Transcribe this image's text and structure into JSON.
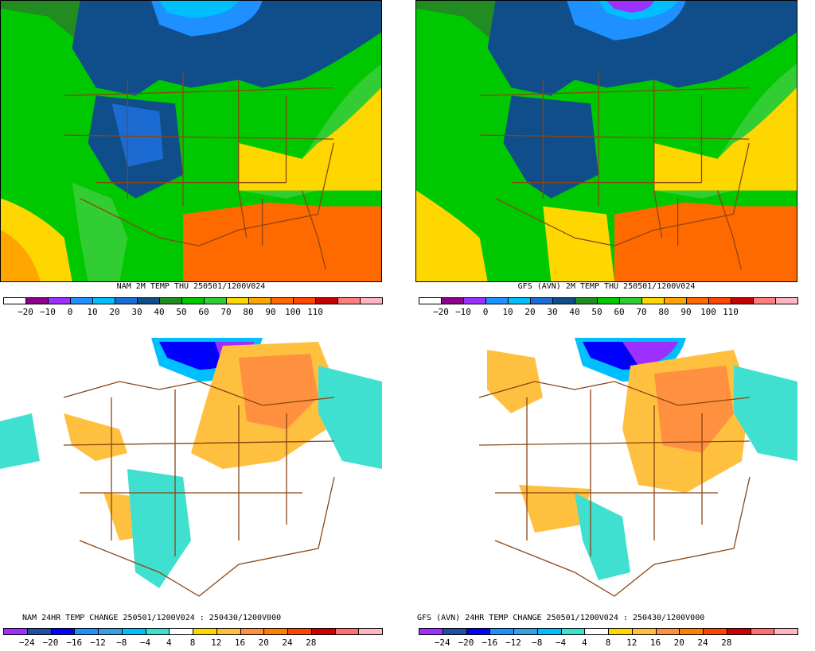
{
  "panels": [
    {
      "id": "nam-temp",
      "caption": "NAM 2M TEMP  THU 250501/1200V024",
      "colorbar": [
        "#ffffff",
        "#8b008b",
        "#9b30ff",
        "#1e90ff",
        "#00bfff",
        "#1c6bd2",
        "#104e8b",
        "#228b22",
        "#00c800",
        "#32cd32",
        "#ffd700",
        "#ffa500",
        "#ff6a00",
        "#ff4500",
        "#c80000",
        "#ff7f7f",
        "#ffb6c1"
      ],
      "ticks": [
        "−20",
        "−10",
        "0",
        "10",
        "20",
        "30",
        "40",
        "50",
        "60",
        "70",
        "80",
        "90",
        "100",
        "110"
      ]
    },
    {
      "id": "gfs-temp",
      "caption": "GFS (AVN) 2M TEMP  THU 250501/1200V024",
      "colorbar": [
        "#ffffff",
        "#8b008b",
        "#9b30ff",
        "#1e90ff",
        "#00bfff",
        "#1c6bd2",
        "#104e8b",
        "#228b22",
        "#00c800",
        "#32cd32",
        "#ffd700",
        "#ffa500",
        "#ff6a00",
        "#ff4500",
        "#c80000",
        "#ff7f7f",
        "#ffb6c1"
      ],
      "ticks": [
        "−20",
        "−10",
        "0",
        "10",
        "20",
        "30",
        "40",
        "50",
        "60",
        "70",
        "80",
        "90",
        "100",
        "110"
      ]
    },
    {
      "id": "nam-change",
      "caption": "NAM 24HR TEMP CHANGE 250501/1200V024 : 250430/1200V000",
      "colorbar": [
        "#9b30ff",
        "#1e50a0",
        "#0000ff",
        "#1e90ff",
        "#3a9fe0",
        "#00bfff",
        "#40e0d0",
        "#ffffff",
        "#ffd700",
        "#ffc040",
        "#ff9040",
        "#ff7f00",
        "#ff4500",
        "#cc0000",
        "#ff7070",
        "#ffb6c1"
      ],
      "ticks": [
        "−24",
        "−20",
        "−16",
        "−12",
        "−8",
        "−4",
        "4",
        "8",
        "12",
        "16",
        "20",
        "24",
        "28"
      ]
    },
    {
      "id": "gfs-change",
      "caption": "GFS (AVN) 24HR TEMP CHANGE 250501/1200V024 : 250430/1200V000",
      "colorbar": [
        "#9b30ff",
        "#1e50a0",
        "#0000ff",
        "#1e90ff",
        "#3a9fe0",
        "#00bfff",
        "#40e0d0",
        "#ffffff",
        "#ffd700",
        "#ffc040",
        "#ff9040",
        "#ff7f00",
        "#ff4500",
        "#cc0000",
        "#ff7070",
        "#ffb6c1"
      ],
      "ticks": [
        "−24",
        "−20",
        "−16",
        "−12",
        "−8",
        "−4",
        "4",
        "8",
        "12",
        "16",
        "20",
        "24",
        "28"
      ]
    }
  ]
}
